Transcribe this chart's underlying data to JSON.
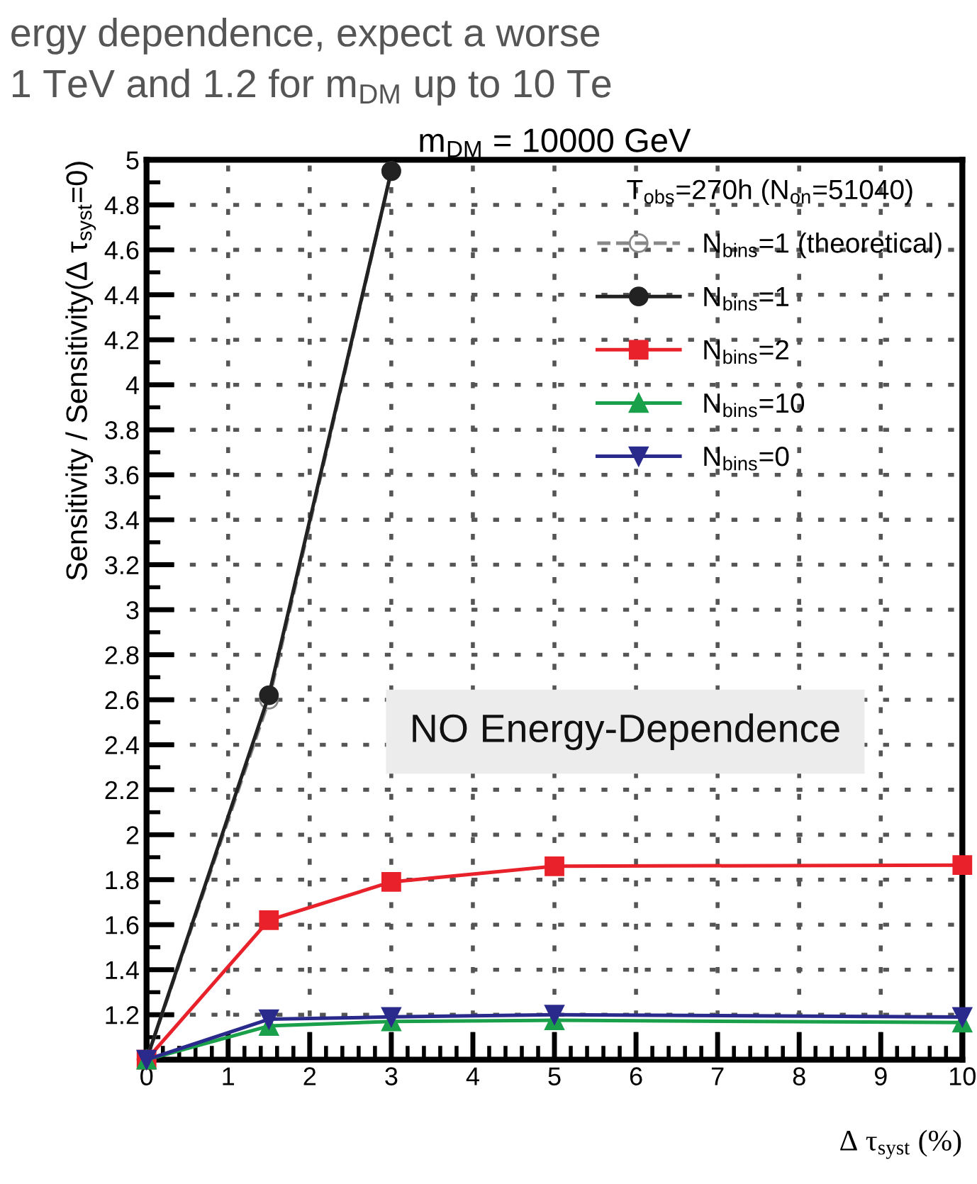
{
  "chart_data": {
    "type": "line",
    "title": "m$_{DM}$ = 10000 GeV",
    "xlabel": "Δ τ$_{syst}$ (%)",
    "ylabel": "Sensitivity / Sensitivity(Δ τ$_{syst}$=0)",
    "legend_title": "T$_{obs}$=270h (N$_{on}$=51040)",
    "xlim": [
      0,
      10
    ],
    "ylim": [
      1,
      5
    ],
    "xticks": [
      0,
      1,
      2,
      3,
      4,
      5,
      6,
      7,
      8,
      9,
      10
    ],
    "yticks": [
      {
        "value": 1,
        "label": null
      },
      1.2,
      1.4,
      1.6,
      1.8,
      2,
      2.2,
      2.4,
      2.6,
      2.8,
      3,
      3.2,
      3.4,
      3.6,
      3.8,
      4,
      4.2,
      4.4,
      4.6,
      4.8,
      5
    ],
    "grid": true,
    "legend": "top right",
    "series": [
      {
        "name": "N$_{bins}$=1 (theoretical)",
        "color": "#888888",
        "marker": "circle",
        "line_style": "dashed",
        "x": [
          0,
          1.5,
          3
        ],
        "values": [
          1,
          2.6,
          4.95
        ]
      },
      {
        "name": "N$_{bins}$=1",
        "color": "#222222",
        "marker": "circle",
        "line_style": "solid",
        "x": [
          0,
          1.5,
          3
        ],
        "values": [
          1,
          2.62,
          4.95
        ]
      },
      {
        "name": "N$_{bins}$=2",
        "color": "#e8212a",
        "marker": "square",
        "line_style": "solid",
        "x": [
          0,
          1.5,
          3,
          5,
          10
        ],
        "values": [
          1,
          1.62,
          1.79,
          1.86,
          1.865
        ]
      },
      {
        "name": "N$_{bins}$=10",
        "color": "#1aa04a",
        "marker": "triangle",
        "line_style": "solid",
        "x": [
          0,
          1.5,
          3,
          5,
          10
        ],
        "values": [
          1,
          1.15,
          1.17,
          1.175,
          1.165
        ]
      },
      {
        "name": "N$_{bins}$=0",
        "color": "#2a2a8c",
        "marker": "triangle_down",
        "line_style": "solid",
        "x": [
          0,
          1.5,
          3,
          5,
          10
        ],
        "values": [
          1,
          1.18,
          1.19,
          1.2,
          1.19
        ]
      }
    ],
    "annotations": [
      "ergy dependence, expect a worse",
      "1 TeV and 1.2 for m$_{DM}$ up to 10 Te",
      "NO Energy-Dependence"
    ]
  }
}
